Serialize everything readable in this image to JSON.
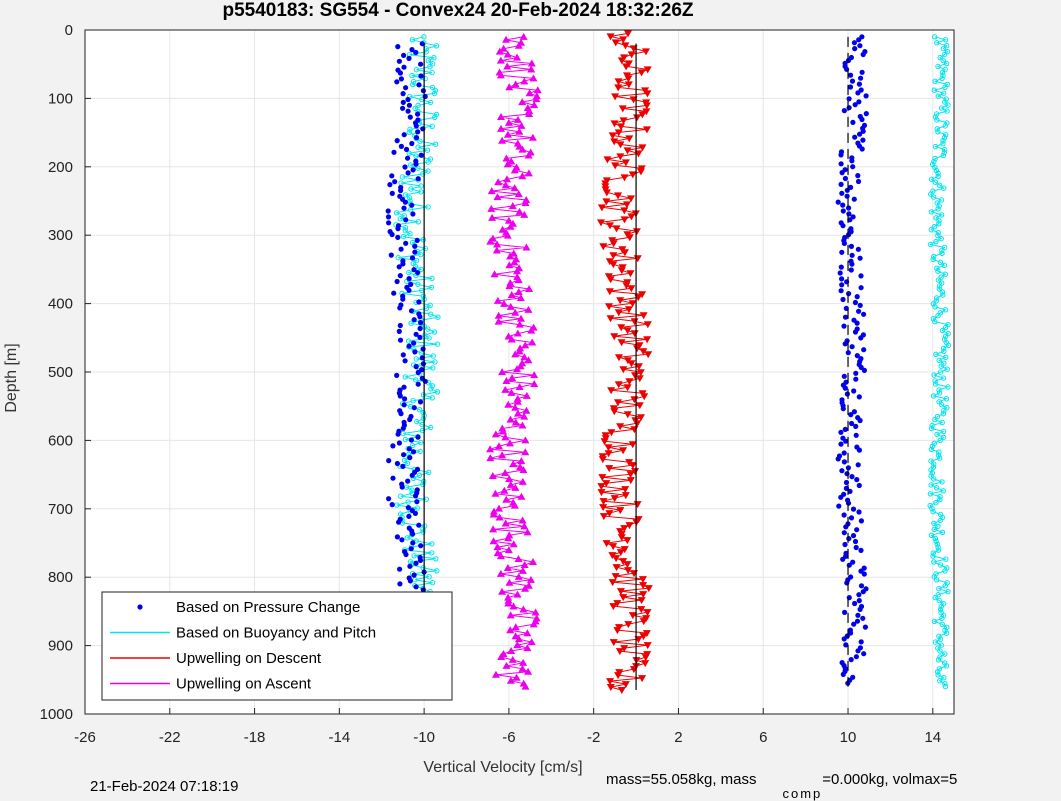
{
  "chart_data": {
    "type": "scatter",
    "title": "p5540183: SG554 - Convex24 20-Feb-2024 18:32:26Z",
    "xlabel": "Vertical Velocity [cm/s]",
    "ylabel": "Depth [m]",
    "xlim": [
      -26,
      15
    ],
    "ylim": [
      0,
      1000
    ],
    "y_reversed": true,
    "grid": true,
    "x_ticks": [
      -26,
      -22,
      -18,
      -14,
      -10,
      -6,
      -2,
      2,
      6,
      10,
      14
    ],
    "y_ticks": [
      0,
      100,
      200,
      300,
      400,
      500,
      600,
      700,
      800,
      900,
      1000
    ],
    "legend_position": "bottom-left",
    "series": [
      {
        "name": "Based on Pressure Change",
        "color": "#0000ee",
        "marker": "dot",
        "profiles": [
          {
            "center": -10.8,
            "depth": [
              20,
              960
            ],
            "spread": 0.7
          },
          {
            "center": 10.2,
            "depth": [
              10,
              955
            ],
            "spread": 0.55
          }
        ]
      },
      {
        "name": "Based on Buoyancy and Pitch",
        "color": "#00e5ee",
        "marker": "circle",
        "profiles": [
          {
            "center": -10.3,
            "depth": [
              10,
              965
            ],
            "spread": 0.8
          },
          {
            "center": 14.3,
            "depth": [
              10,
              960
            ],
            "spread": 0.35
          }
        ]
      },
      {
        "name": "Upwelling on Descent",
        "color": "#ee0000",
        "marker": "triangle-down",
        "profiles": [
          {
            "center": -0.5,
            "depth": [
              5,
              965
            ],
            "spread": 0.9
          }
        ]
      },
      {
        "name": "Upwelling on Ascent",
        "color": "#ee00ee",
        "marker": "triangle-up",
        "profiles": [
          {
            "center": -5.8,
            "depth": [
              10,
              960
            ],
            "spread": 0.9
          }
        ]
      }
    ],
    "reference_lines": [
      {
        "x": -10.0,
        "style": "solid",
        "depth": [
          20,
          965
        ]
      },
      {
        "x": 0.0,
        "style": "solid",
        "depth": [
          20,
          965
        ]
      },
      {
        "x": 10.0,
        "style": "dashed",
        "depth": [
          10,
          960
        ]
      }
    ],
    "subtitle_left": "21-Feb-2024 07:18:19",
    "footer_right": {
      "a": "mass=55.058kg, mass",
      "sub": "comp",
      "b": "=0.000kg, volmax=5"
    }
  }
}
